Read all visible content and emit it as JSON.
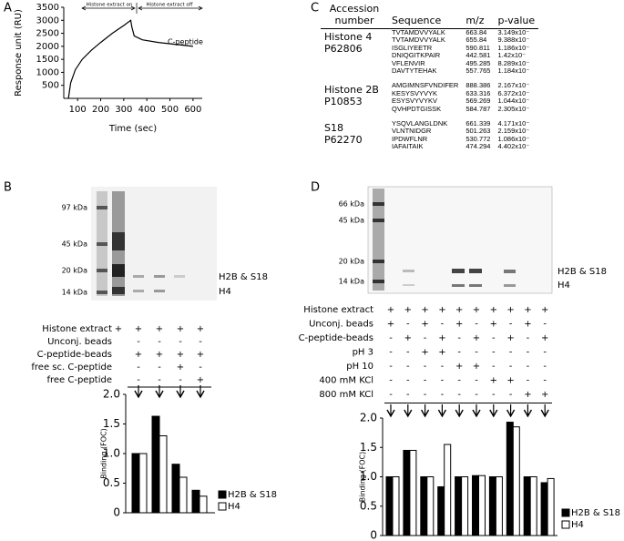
{
  "panel_labels": [
    "A",
    "B",
    "C",
    "D"
  ],
  "chart_data": [
    {
      "type": "line",
      "xlabel": "Time (sec)",
      "ylabel": "Response unit (RU)",
      "annotations": [
        "Histone extract on",
        "Histone extract off"
      ],
      "x": [
        60,
        70,
        90,
        120,
        160,
        200,
        250,
        300,
        330,
        335,
        345,
        380,
        450,
        520,
        600
      ],
      "series": [
        {
          "name": "C-peptide",
          "color": "#000000",
          "values": [
            0,
            600,
            1100,
            1500,
            1850,
            2150,
            2500,
            2800,
            3000,
            2750,
            2400,
            2250,
            2150,
            2080,
            2000
          ]
        }
      ],
      "xlim": [
        40,
        640
      ],
      "xticks": [
        100,
        200,
        300,
        400,
        500,
        600
      ],
      "ylim": [
        0,
        3500
      ],
      "yticks": [
        500,
        1000,
        1500,
        2000,
        2500,
        3000,
        3500
      ]
    },
    {
      "type": "bar",
      "ylabel": "Binding (FOC)",
      "categories": [
        null,
        null,
        null,
        null
      ],
      "series": [
        {
          "name": "H2B &  S18",
          "color": "#000000",
          "values": [
            1.0,
            1.63,
            0.82,
            0.38
          ]
        },
        {
          "name": "H4",
          "color": "#ffffff",
          "values": [
            1.0,
            1.3,
            0.6,
            0.28
          ]
        }
      ],
      "ylim": [
        0,
        2
      ],
      "yticks": [
        0,
        0.5,
        {
          "value": 1,
          "label": "1.0"
        },
        1.5,
        {
          "value": 2,
          "label": "2.0"
        }
      ]
    },
    {
      "type": "bar",
      "ylabel": "Binding (FOC)",
      "categories": [
        null,
        null,
        null,
        null,
        null,
        null,
        null,
        null,
        null,
        null
      ],
      "series": [
        {
          "name": "H2B &  S18",
          "color": "#000000",
          "values": [
            1.0,
            1.45,
            1.0,
            0.83,
            1.0,
            1.02,
            1.0,
            1.93,
            1.0,
            0.9
          ]
        },
        {
          "name": "H4",
          "color": "#ffffff",
          "values": [
            1.0,
            1.45,
            1.0,
            1.55,
            1.0,
            1.02,
            1.0,
            1.85,
            1.0,
            0.97
          ]
        }
      ],
      "ylim": [
        0,
        2
      ],
      "yticks": [
        0,
        0.5,
        {
          "value": 1,
          "label": "1.0"
        },
        1.5,
        {
          "value": 2,
          "label": "2.0"
        }
      ]
    }
  ],
  "table": {
    "headers": [
      "Accession number",
      "Sequence",
      "m/z",
      "p-value"
    ],
    "groups": [
      {
        "name": "Histone 4",
        "accession": "P62806",
        "rows": [
          [
            "TVTAMDVVYALK",
            "663.84",
            "3.149x10⁻"
          ],
          [
            "TVTAMDVVYALK",
            "655.84",
            "9.388x10⁻"
          ],
          [
            "ISGLIYEETR",
            "590.811",
            "1.186x10⁻"
          ],
          [
            "DNIQGITKPAIR",
            "442.581",
            "1.42x10⁻"
          ],
          [
            "VFLENVIR",
            "495.285",
            "8.289x10⁻"
          ],
          [
            "DAVTYTEHAK",
            "557.765",
            "1.184x10⁻"
          ]
        ]
      },
      {
        "name": "Histone 2B",
        "accession": "P10853",
        "rows": [
          [
            "AMGIMNSFVNDIFER",
            "888.386",
            "2.167x10⁻"
          ],
          [
            "KESYSVYVYK",
            "633.316",
            "6.372x10⁻"
          ],
          [
            "ESYSVYVYKV",
            "569.269",
            "1.044x10⁻"
          ],
          [
            "QVHPDTGISSK",
            "584.787",
            "2.305x10⁻"
          ]
        ]
      },
      {
        "name": "S18",
        "accession": "P62270",
        "rows": [
          [
            "YSQVLANGLDNK",
            "661.339",
            "4.171x10⁻"
          ],
          [
            "VLNTNIDGR",
            "501.263",
            "2.159x10⁻"
          ],
          [
            "IPDWFLNR",
            "530.772",
            "1.086x10⁻"
          ],
          [
            "IAFAITAIK",
            "474.294",
            "4.402x10⁻"
          ]
        ]
      }
    ]
  },
  "gel_b": {
    "markers": [
      "97 kDa",
      "45 kDa",
      "20 kDa",
      "14 kDa"
    ],
    "bands": [
      "H2B &  S18",
      "H4"
    ],
    "conditions": [
      {
        "label": "Histone extract",
        "signs": [
          "+",
          "+",
          "+",
          "+",
          "+"
        ]
      },
      {
        "label": "Unconj. beads",
        "signs": [
          null,
          "-",
          "-",
          "-",
          "-"
        ]
      },
      {
        "label": "C-peptide-beads",
        "signs": [
          null,
          "+",
          "+",
          "+",
          "+"
        ]
      },
      {
        "label": "free sc. C-peptide",
        "signs": [
          null,
          "-",
          "-",
          "+",
          "-"
        ]
      },
      {
        "label": "free C-peptide",
        "signs": [
          null,
          "-",
          "-",
          "-",
          "+"
        ]
      }
    ]
  },
  "gel_d": {
    "markers": [
      "66 kDa",
      "45 kDa",
      "20 kDa",
      "14 kDa"
    ],
    "bands": [
      "H2B &  S18",
      "H4"
    ],
    "conditions": [
      {
        "label": "Histone extract",
        "signs": [
          "+",
          "+",
          "+",
          "+",
          "+",
          "+",
          "+",
          "+",
          "+",
          "+"
        ]
      },
      {
        "label": "Unconj. beads",
        "signs": [
          "+",
          "-",
          "+",
          "-",
          "+",
          "-",
          "+",
          "-",
          "+",
          "-"
        ]
      },
      {
        "label": "C-peptide-beads",
        "signs": [
          "-",
          "+",
          "-",
          "+",
          "-",
          "+",
          "-",
          "+",
          "-",
          "+"
        ]
      },
      {
        "label": "pH 3",
        "signs": [
          "-",
          "-",
          "+",
          "+",
          "-",
          "-",
          "-",
          "-",
          "-",
          "-"
        ]
      },
      {
        "label": "pH 10",
        "signs": [
          "-",
          "-",
          "-",
          "-",
          "+",
          "+",
          "-",
          "-",
          "-",
          "-"
        ]
      },
      {
        "label": "400 mM KCl",
        "signs": [
          "-",
          "-",
          "-",
          "-",
          "-",
          "-",
          "+",
          "+",
          "-",
          "-"
        ]
      },
      {
        "label": "800 mM KCl",
        "signs": [
          "-",
          "-",
          "-",
          "-",
          "-",
          "-",
          "-",
          "-",
          "+",
          "+"
        ]
      }
    ]
  }
}
